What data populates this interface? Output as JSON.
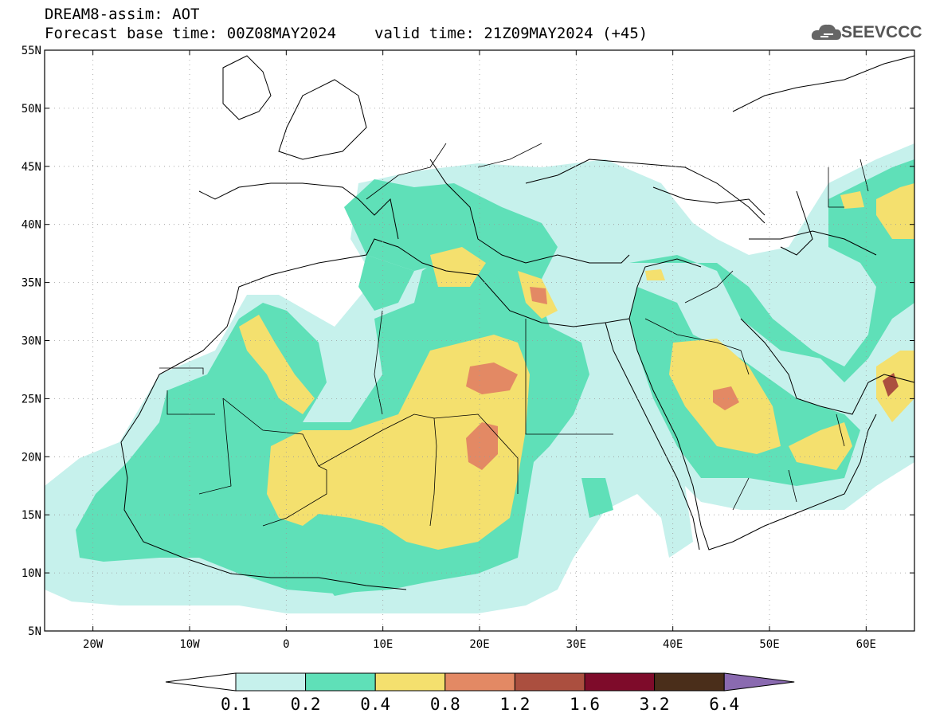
{
  "header": {
    "title_line1": "DREAM8-assim: AOT",
    "base_time": "Forecast base time: 00Z08MAY2024",
    "valid_time": "valid time: 21Z09MAY2024 (+45)"
  },
  "logo": {
    "text": "SEEVCCC",
    "icon": "cloud-icon"
  },
  "map": {
    "lat_labels": [
      "55N",
      "50N",
      "45N",
      "40N",
      "35N",
      "30N",
      "25N",
      "20N",
      "15N",
      "10N",
      "5N"
    ],
    "lon_labels": [
      "20W",
      "10W",
      "0",
      "10E",
      "20E",
      "30E",
      "40E",
      "50E",
      "60E"
    ],
    "lon_range": [
      -25,
      65
    ],
    "lat_range": [
      5,
      55
    ],
    "grid": "dotted"
  },
  "colorbar": {
    "labels": [
      "0.1",
      "0.2",
      "0.4",
      "0.8",
      "1.2",
      "1.6",
      "3.2",
      "6.4"
    ],
    "colors": [
      "#ffffff",
      "#c6f1ec",
      "#5fe0b8",
      "#f4e06e",
      "#e38964",
      "#ab4f3f",
      "#7e0b2a",
      "#4a2e1a",
      "#8a6ab0"
    ]
  }
}
